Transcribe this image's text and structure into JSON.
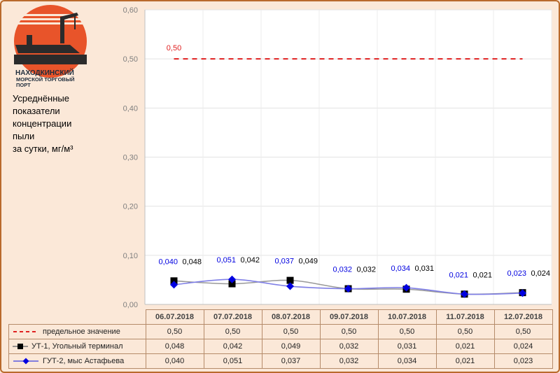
{
  "logo": {
    "title": "НАХОДКИНСКИЙ",
    "line2": "МОРСКОЙ ТОРГОВЫЙ",
    "line3": "ПОРТ",
    "colors": {
      "sun": "#e8542a",
      "ship": "#2b2b2b"
    }
  },
  "caption": {
    "lines": [
      "Усреднённые",
      "показатели",
      "концентрации",
      "пыли",
      "за сутки, мг/м³"
    ]
  },
  "chart_data": {
    "type": "line",
    "categories": [
      "06.07.2018",
      "07.07.2018",
      "08.07.2018",
      "09.07.2018",
      "10.07.2018",
      "11.07.2018",
      "12.07.2018"
    ],
    "ylim": [
      0,
      0.6
    ],
    "yticks": [
      "0,00",
      "0,10",
      "0,20",
      "0,30",
      "0,40",
      "0,50",
      "0,60"
    ],
    "grid": true,
    "legend": "table-bottom",
    "limit_label": "0,50",
    "series": [
      {
        "name": "предельное значение",
        "values": [
          0.5,
          0.5,
          0.5,
          0.5,
          0.5,
          0.5,
          0.5
        ],
        "labels": [
          "0,50",
          "0,50",
          "0,50",
          "0,50",
          "0,50",
          "0,50",
          "0,50"
        ],
        "color": "#e02020",
        "style": "dashed"
      },
      {
        "name": "УТ-1, Угольный терминал",
        "values": [
          0.048,
          0.042,
          0.049,
          0.032,
          0.031,
          0.021,
          0.024
        ],
        "labels": [
          "0,048",
          "0,042",
          "0,049",
          "0,032",
          "0,031",
          "0,021",
          "0,024"
        ],
        "color": "#000000",
        "line_color": "#999999",
        "marker": "square"
      },
      {
        "name": "ГУТ-2, мыс Астафьева",
        "values": [
          0.04,
          0.051,
          0.037,
          0.032,
          0.034,
          0.021,
          0.023
        ],
        "labels": [
          "0,040",
          "0,051",
          "0,037",
          "0,032",
          "0,034",
          "0,021",
          "0,023"
        ],
        "color": "#0000e0",
        "line_color": "#7f7fe6",
        "marker": "diamond"
      }
    ]
  }
}
